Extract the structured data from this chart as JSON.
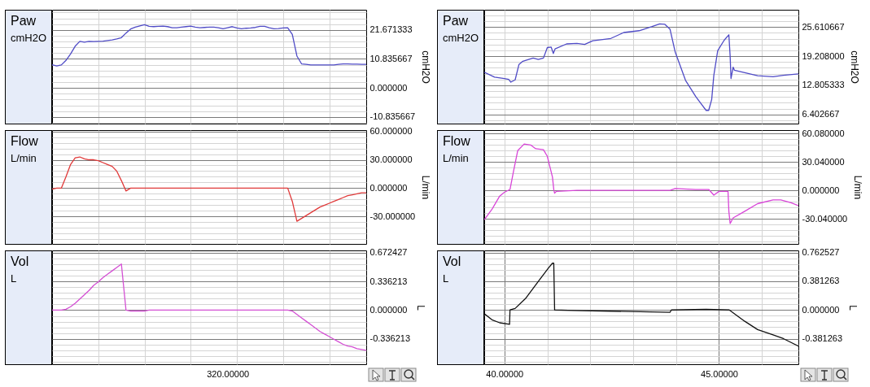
{
  "chart_data": [
    {
      "type": "line",
      "title": "Paw",
      "subtitle": "cmH2O",
      "ylabel": "cmH2O",
      "grid": true,
      "tick_labels": "y",
      "categories": [
        null,
        null,
        null,
        null,
        null,
        null,
        null,
        null,
        null,
        null,
        null,
        null,
        null,
        null,
        null,
        null,
        null,
        null,
        null,
        null,
        null,
        null,
        null,
        null,
        null,
        null,
        null,
        null,
        null,
        null,
        null,
        null,
        null,
        null,
        null,
        null,
        null,
        null,
        null,
        null,
        null,
        null,
        null,
        null,
        null,
        null,
        null,
        null,
        null,
        null,
        null,
        null,
        null,
        null,
        null,
        null,
        null,
        null,
        null,
        null,
        null,
        null,
        null,
        null,
        null,
        null,
        null,
        null,
        null
      ],
      "ylim": [
        -13.3,
        29.2
      ],
      "yticks": [
        {
          "value": -10.835667,
          "label": "-10.835667"
        },
        {
          "value": 0,
          "label": "0.000000"
        },
        {
          "value": 10.835667,
          "label": "10.835667"
        },
        {
          "value": 21.671333,
          "label": "21.671333"
        },
        {
          "value": -13.0028,
          "label": null
        },
        {
          "value": -8.6685,
          "label": null
        },
        {
          "value": -6.5014,
          "label": null
        },
        {
          "value": -4.3343,
          "label": null
        },
        {
          "value": -2.1671,
          "label": null
        },
        {
          "value": 2.1671,
          "label": null
        },
        {
          "value": 4.3343,
          "label": null
        },
        {
          "value": 6.5014,
          "label": null
        },
        {
          "value": 8.6685,
          "label": null
        },
        {
          "value": 13.0028,
          "label": null
        },
        {
          "value": 15.1699,
          "label": null
        },
        {
          "value": 17.3371,
          "label": null
        },
        {
          "value": 19.5042,
          "label": null
        },
        {
          "value": 23.8385,
          "label": null
        },
        {
          "value": 26.0056,
          "label": null
        },
        {
          "value": 28.1727,
          "label": null
        }
      ],
      "series": [
        {
          "color": "#4f4bc6",
          "values": [
            8.7,
            8.2,
            8.6,
            10.3,
            12.7,
            15.6,
            17.4,
            17.1,
            17.4,
            17.3,
            17.4,
            17.5,
            17.7,
            17.9,
            18.3,
            18.8,
            20.5,
            22.0,
            22.7,
            23.2,
            23.6,
            23.0,
            22.9,
            23.0,
            23.1,
            22.9,
            22.5,
            22.5,
            22.7,
            22.9,
            23.1,
            22.7,
            22.5,
            22.6,
            22.7,
            22.7,
            22.5,
            22.1,
            22.5,
            22.9,
            22.4,
            22.1,
            22.3,
            22.4,
            22.6,
            23.0,
            23.0,
            22.5,
            22.1,
            22.2,
            22.4,
            22.5,
            20.0,
            11.9,
            9.0,
            8.8,
            8.6,
            8.6,
            8.6,
            8.6,
            8.6,
            8.6,
            8.8,
            9.0,
            9.0,
            8.9,
            8.9,
            8.8,
            8.8
          ]
        }
      ]
    },
    {
      "type": "line",
      "title": "Flow",
      "subtitle": "L/min",
      "ylabel": "L/min",
      "grid": true,
      "tick_labels": "y",
      "categories": [
        null,
        null,
        null,
        null,
        null,
        null,
        null,
        null,
        null,
        null,
        null,
        null,
        null,
        null,
        null,
        null,
        null,
        null,
        null,
        null,
        null,
        null,
        null,
        null,
        null,
        null,
        null,
        null,
        null,
        null,
        null,
        null,
        null,
        null,
        null,
        null,
        null,
        null,
        null,
        null,
        null,
        null,
        null,
        null,
        null,
        null,
        null,
        null,
        null,
        null,
        null,
        null,
        null,
        null,
        null,
        null,
        null,
        null,
        null,
        null,
        null,
        null,
        null,
        null,
        null,
        null,
        null,
        null,
        null
      ],
      "ylim": [
        -59,
        61.4
      ],
      "yticks": [
        {
          "value": -30,
          "label": "-30.000000"
        },
        {
          "value": 0,
          "label": "0.000000"
        },
        {
          "value": 30,
          "label": "30.000000"
        },
        {
          "value": 60,
          "label": "60.000000"
        },
        {
          "value": -54,
          "label": null
        },
        {
          "value": -48,
          "label": null
        },
        {
          "value": -42,
          "label": null
        },
        {
          "value": -36,
          "label": null
        },
        {
          "value": -24,
          "label": null
        },
        {
          "value": -18,
          "label": null
        },
        {
          "value": -12,
          "label": null
        },
        {
          "value": -6,
          "label": null
        },
        {
          "value": 6,
          "label": null
        },
        {
          "value": 12,
          "label": null
        },
        {
          "value": 18,
          "label": null
        },
        {
          "value": 24,
          "label": null
        },
        {
          "value": 36,
          "label": null
        },
        {
          "value": 42,
          "label": null
        },
        {
          "value": 48,
          "label": null
        },
        {
          "value": 54,
          "label": null
        }
      ],
      "series": [
        {
          "color": "#e03a3a",
          "values": [
            -1,
            0,
            0,
            12,
            25,
            32,
            33,
            31,
            30,
            30,
            29,
            27,
            25,
            23,
            18,
            8,
            -3,
            0,
            0,
            0,
            0,
            0,
            0,
            0,
            0,
            0,
            0,
            0,
            0,
            0,
            0,
            0,
            0,
            0,
            0,
            0,
            0,
            0,
            0,
            0,
            0,
            0,
            0,
            0,
            0,
            0,
            0,
            0,
            0,
            0,
            0,
            0,
            -14,
            -35,
            -32,
            -29,
            -26,
            -23,
            -20,
            -18,
            -16,
            -14,
            -12,
            -10,
            -8,
            -7,
            -6,
            -5,
            -5
          ]
        }
      ]
    },
    {
      "type": "line",
      "title": "Vol",
      "subtitle": "L",
      "ylabel": "L",
      "grid": true,
      "tick_labels": "y",
      "annotations": [
        "320.00000"
      ],
      "categories": [
        null,
        null,
        null,
        null,
        null,
        null,
        null,
        null,
        null,
        null,
        null,
        null,
        null,
        null,
        null,
        null,
        null,
        null,
        null,
        null,
        null,
        null,
        null,
        null,
        null,
        null,
        null,
        null,
        null,
        null,
        null,
        null,
        null,
        null,
        null,
        null,
        null,
        null,
        null,
        null,
        null,
        null,
        null,
        null,
        null,
        null,
        null,
        null,
        null,
        null,
        null,
        null,
        null,
        null,
        null,
        null,
        null,
        null,
        null,
        null,
        null,
        null,
        null,
        null,
        null,
        null,
        null,
        null,
        null
      ],
      "ylim": [
        -0.633,
        0.699
      ],
      "yticks": [
        {
          "value": -0.336213,
          "label": "-0.336213"
        },
        {
          "value": 0,
          "label": "0.000000"
        },
        {
          "value": 0.336213,
          "label": "0.336213"
        },
        {
          "value": 0.672427,
          "label": "0.672427"
        },
        {
          "value": -0.605184,
          "label": null
        },
        {
          "value": -0.537942,
          "label": null
        },
        {
          "value": -0.470699,
          "label": null
        },
        {
          "value": -0.403456,
          "label": null
        },
        {
          "value": -0.26897,
          "label": null
        },
        {
          "value": -0.201728,
          "label": null
        },
        {
          "value": -0.134485,
          "label": null
        },
        {
          "value": -0.067243,
          "label": null
        },
        {
          "value": 0.067243,
          "label": null
        },
        {
          "value": 0.134485,
          "label": null
        },
        {
          "value": 0.201728,
          "label": null
        },
        {
          "value": 0.26897,
          "label": null
        },
        {
          "value": 0.403456,
          "label": null
        },
        {
          "value": 0.470699,
          "label": null
        },
        {
          "value": 0.537942,
          "label": null
        },
        {
          "value": 0.605184,
          "label": null
        }
      ],
      "series": [
        {
          "color": "#d34fd3",
          "values": [
            0,
            0,
            0,
            0.01,
            0.04,
            0.08,
            0.13,
            0.18,
            0.23,
            0.29,
            0.33,
            0.38,
            0.42,
            0.46,
            0.5,
            0.54,
            0,
            -0.01,
            -0.01,
            -0.01,
            -0.01,
            0,
            0,
            0,
            0,
            0,
            0,
            0,
            0,
            0,
            0,
            0,
            0,
            0,
            0,
            0,
            0,
            0,
            0,
            0,
            0,
            0,
            0,
            0,
            0,
            0,
            0,
            0,
            0,
            0,
            0,
            0,
            -0.01,
            -0.05,
            -0.09,
            -0.13,
            -0.17,
            -0.21,
            -0.25,
            -0.28,
            -0.31,
            -0.34,
            -0.37,
            -0.4,
            -0.42,
            -0.43,
            -0.45,
            -0.46,
            -0.47
          ]
        }
      ]
    },
    {
      "type": "line",
      "title": "Paw",
      "subtitle": "cmH2O",
      "ylabel": "cmH2O",
      "grid": true,
      "tick_labels": "y",
      "xlim": [
        39.53,
        46.85
      ],
      "xticks": [
        {
          "value": 40,
          "label": null
        },
        {
          "value": 41,
          "label": null
        },
        {
          "value": 42,
          "label": null
        },
        {
          "value": 43,
          "label": null
        },
        {
          "value": 44,
          "label": null
        },
        {
          "value": 45,
          "label": null
        },
        {
          "value": 46,
          "label": null
        }
      ],
      "ylim": [
        4.4,
        29.4
      ],
      "yticks": [
        {
          "value": 6.402667,
          "label": "6.402667"
        },
        {
          "value": 12.805333,
          "label": "12.805333"
        },
        {
          "value": 19.208,
          "label": "19.208000"
        },
        {
          "value": 25.610667,
          "label": "25.610667"
        },
        {
          "value": 5.1221,
          "label": null
        },
        {
          "value": 7.6832,
          "label": null
        },
        {
          "value": 8.9637,
          "label": null
        },
        {
          "value": 10.2443,
          "label": null
        },
        {
          "value": 11.5248,
          "label": null
        },
        {
          "value": 14.0859,
          "label": null
        },
        {
          "value": 15.3664,
          "label": null
        },
        {
          "value": 16.6469,
          "label": null
        },
        {
          "value": 17.9275,
          "label": null
        },
        {
          "value": 20.4885,
          "label": null
        },
        {
          "value": 21.7691,
          "label": null
        },
        {
          "value": 23.0496,
          "label": null
        },
        {
          "value": 24.3301,
          "label": null
        },
        {
          "value": 26.8912,
          "label": null
        },
        {
          "value": 28.1717,
          "label": null
        }
      ],
      "x": [
        39.53,
        39.77,
        40.0,
        40.1,
        40.15,
        40.25,
        40.34,
        40.43,
        40.67,
        40.79,
        40.91,
        41.0,
        41.09,
        41.14,
        41.18,
        41.45,
        41.69,
        41.87,
        42.06,
        42.48,
        42.78,
        43.14,
        43.44,
        43.62,
        43.74,
        43.86,
        43.98,
        44.22,
        44.46,
        44.58,
        44.7,
        44.76,
        44.83,
        44.88,
        44.97,
        45.12,
        45.23,
        45.26,
        45.28,
        45.33,
        45.36,
        45.6,
        45.9,
        46.26,
        46.5,
        46.85
      ],
      "series": [
        {
          "color": "#4f4bc6",
          "values": [
            15.7,
            14.6,
            14.3,
            14.1,
            13.5,
            14.0,
            17.4,
            18.1,
            18.8,
            18.5,
            18.8,
            21.1,
            21.2,
            19.8,
            20.8,
            21.9,
            22.0,
            21.8,
            22.6,
            23.1,
            24.4,
            24.8,
            25.7,
            26.3,
            26.2,
            25.1,
            20.1,
            13.9,
            10.3,
            8.8,
            7.3,
            7.3,
            9.7,
            15.0,
            20.4,
            22.7,
            23.9,
            19.2,
            14.3,
            16.8,
            16.1,
            15.6,
            14.9,
            14.7,
            15.0,
            15.3
          ]
        }
      ]
    },
    {
      "type": "line",
      "title": "Flow",
      "subtitle": "L/min",
      "ylabel": "L/min",
      "grid": true,
      "tick_labels": "y",
      "xlim": [
        39.53,
        46.85
      ],
      "xticks": [
        {
          "value": 40,
          "label": null
        },
        {
          "value": 41,
          "label": null
        },
        {
          "value": 42,
          "label": null
        },
        {
          "value": 43,
          "label": null
        },
        {
          "value": 44,
          "label": null
        },
        {
          "value": 45,
          "label": null
        },
        {
          "value": 46,
          "label": null
        }
      ],
      "ylim": [
        -56.5,
        63.7
      ],
      "yticks": [
        {
          "value": -30.04,
          "label": "-30.040000"
        },
        {
          "value": 0,
          "label": "0.000000"
        },
        {
          "value": 30.04,
          "label": "30.040000"
        },
        {
          "value": 60.08,
          "label": "60.080000"
        },
        {
          "value": -54.072,
          "label": null
        },
        {
          "value": -48.064,
          "label": null
        },
        {
          "value": -42.056,
          "label": null
        },
        {
          "value": -36.048,
          "label": null
        },
        {
          "value": -24.032,
          "label": null
        },
        {
          "value": -18.024,
          "label": null
        },
        {
          "value": -12.016,
          "label": null
        },
        {
          "value": -6.008,
          "label": null
        },
        {
          "value": 6.008,
          "label": null
        },
        {
          "value": 12.016,
          "label": null
        },
        {
          "value": 18.024,
          "label": null
        },
        {
          "value": 24.032,
          "label": null
        },
        {
          "value": 36.048,
          "label": null
        },
        {
          "value": 42.056,
          "label": null
        },
        {
          "value": 48.064,
          "label": null
        },
        {
          "value": 54.072,
          "label": null
        }
      ],
      "x": [
        39.53,
        39.71,
        39.89,
        40.0,
        40.13,
        40.22,
        40.31,
        40.46,
        40.61,
        40.73,
        40.91,
        41.0,
        41.06,
        41.12,
        41.15,
        41.17,
        41.21,
        41.69,
        43.86,
        43.98,
        44.46,
        44.76,
        44.88,
        45.0,
        45.21,
        45.23,
        45.26,
        45.33,
        45.6,
        45.9,
        46.26,
        46.44,
        46.68,
        46.85
      ],
      "series": [
        {
          "color": "#d845d8",
          "values": [
            -31,
            -20,
            -6,
            -2,
            1,
            22,
            42,
            49,
            48,
            44,
            43,
            36,
            25,
            14,
            1,
            -3,
            -1,
            0,
            0,
            2,
            1,
            1,
            -5,
            -1,
            -1,
            -22,
            -35,
            -29,
            -22,
            -14,
            -10,
            -10,
            -13,
            -16
          ]
        }
      ]
    },
    {
      "type": "line",
      "title": "Vol",
      "subtitle": "L",
      "ylabel": "L",
      "grid": true,
      "xlim": [
        39.53,
        46.85
      ],
      "xticks": [
        {
          "value": 40,
          "label": "40.00000"
        },
        {
          "value": 41,
          "label": null
        },
        {
          "value": 42,
          "label": null
        },
        {
          "value": 43,
          "label": null
        },
        {
          "value": 44,
          "label": null
        },
        {
          "value": 45,
          "label": "45.00000"
        },
        {
          "value": 46,
          "label": null
        }
      ],
      "ylim": [
        -0.72,
        0.79
      ],
      "yticks": [
        {
          "value": -0.381263,
          "label": "-0.381263"
        },
        {
          "value": 0,
          "label": "0.000000"
        },
        {
          "value": 0.381263,
          "label": "0.381263"
        },
        {
          "value": 0.762527,
          "label": "0.762527"
        },
        {
          "value": -0.6862743,
          "label": null
        },
        {
          "value": -0.6100216,
          "label": null
        },
        {
          "value": -0.5337689,
          "label": null
        },
        {
          "value": -0.4575162,
          "label": null
        },
        {
          "value": -0.3050108,
          "label": null
        },
        {
          "value": -0.2287581,
          "label": null
        },
        {
          "value": -0.1525054,
          "label": null
        },
        {
          "value": -0.0762527,
          "label": null
        },
        {
          "value": 0.0762527,
          "label": null
        },
        {
          "value": 0.1525054,
          "label": null
        },
        {
          "value": 0.2287581,
          "label": null
        },
        {
          "value": 0.3050108,
          "label": null
        },
        {
          "value": 0.4575162,
          "label": null
        },
        {
          "value": 0.5337689,
          "label": null
        },
        {
          "value": 0.6100216,
          "label": null
        },
        {
          "value": 0.6862743,
          "label": null
        }
      ],
      "x": [
        39.53,
        39.71,
        39.89,
        40.12,
        40.13,
        40.25,
        40.49,
        40.79,
        41.03,
        41.12,
        41.15,
        41.17,
        41.81,
        43.86,
        43.89,
        44.7,
        45.24,
        45.6,
        45.9,
        46.26,
        46.5,
        46.85
      ],
      "series": [
        {
          "color": "#111111",
          "values": [
            -0.05,
            -0.13,
            -0.17,
            -0.19,
            0,
            0.02,
            0.15,
            0.38,
            0.56,
            0.62,
            0.62,
            0,
            -0.01,
            -0.03,
            0,
            0.01,
            0,
            -0.15,
            -0.26,
            -0.33,
            -0.38,
            -0.48
          ]
        }
      ]
    }
  ]
}
